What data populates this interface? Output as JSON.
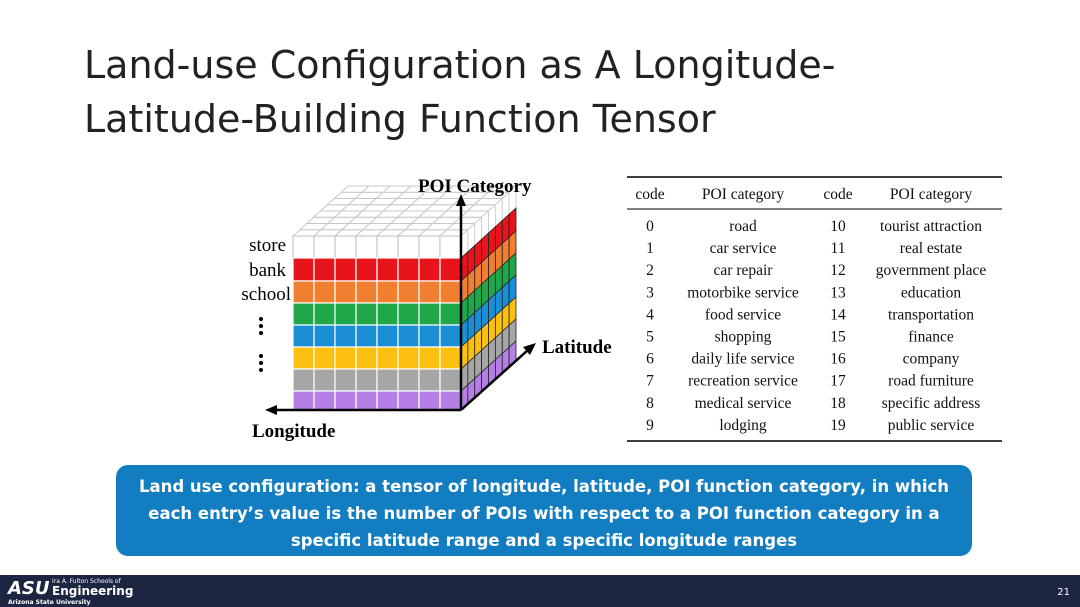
{
  "title": {
    "lines": [
      "Land-use Configuration as A Longitude-",
      "Latitude-Building Function Tensor"
    ]
  },
  "diagram": {
    "axis_vertical": "POI Category",
    "axis_depth": "Latitude",
    "axis_horizontal": "Longitude",
    "row_labels": [
      "store",
      "bank",
      "school"
    ]
  },
  "table": {
    "header": [
      "code",
      "POI category",
      "code",
      "POI category"
    ],
    "rows": [
      [
        "0",
        "road",
        "10",
        "tourist attraction"
      ],
      [
        "1",
        "car service",
        "11",
        "real estate"
      ],
      [
        "2",
        "car repair",
        "12",
        "government place"
      ],
      [
        "3",
        "motorbike service",
        "13",
        "education"
      ],
      [
        "4",
        "food service",
        "14",
        "transportation"
      ],
      [
        "5",
        "shopping",
        "15",
        "finance"
      ],
      [
        "6",
        "daily life service",
        "16",
        "company"
      ],
      [
        "7",
        "recreation service",
        "17",
        "road furniture"
      ],
      [
        "8",
        "medical service",
        "18",
        "specific address"
      ],
      [
        "9",
        "lodging",
        "19",
        "public service"
      ]
    ]
  },
  "callout": {
    "lines": [
      "Land use configuration: a tensor of longitude, latitude, POI function category, in which",
      "each entry’s value is the number of POIs with respect to a POI function category in a",
      "specific latitude range and a specific longitude ranges"
    ]
  },
  "footer": {
    "logo": "ASU",
    "school_line": "Ira A. Fulton Schools of",
    "school": "Engineering",
    "university": "Arizona State University",
    "page_number": "21"
  }
}
